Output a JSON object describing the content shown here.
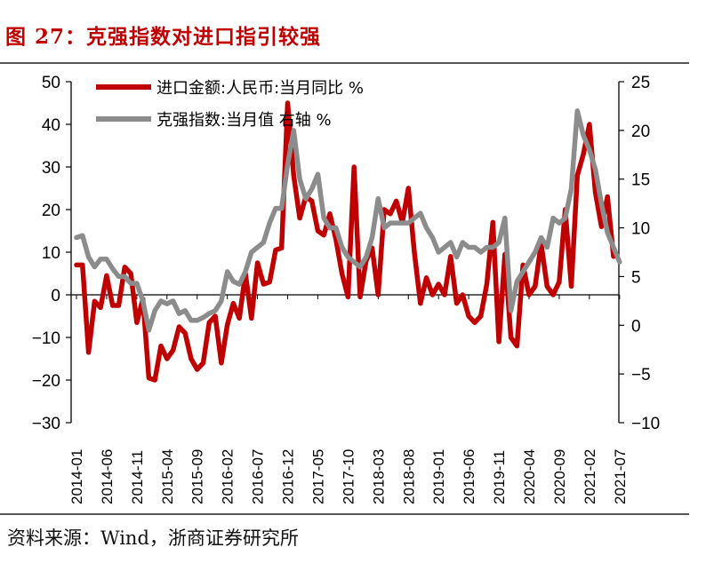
{
  "header": {
    "title": "图 27：克强指数对进口指引较强"
  },
  "footer": {
    "source": "资料来源：Wind，浙商证券研究所"
  },
  "colors": {
    "import": "#c00000",
    "keqiang": "#8c8c8c",
    "title": "#c00000"
  },
  "chart_data": {
    "type": "line",
    "legend_position": "top-left",
    "grid": false,
    "x_tick_labels": [
      "2014-01",
      "2014-06",
      "2014-11",
      "2015-04",
      "2015-09",
      "2016-02",
      "2016-07",
      "2016-12",
      "2017-05",
      "2017-10",
      "2018-03",
      "2018-08",
      "2019-01",
      "2019-06",
      "2019-11",
      "2020-04",
      "2020-09",
      "2021-02",
      "2021-07"
    ],
    "y_left": {
      "range": [
        -30,
        50
      ],
      "ticks": [
        -30,
        -20,
        -10,
        0,
        10,
        20,
        30,
        40,
        50
      ]
    },
    "y_right": {
      "range": [
        -10,
        25
      ],
      "ticks": [
        -10,
        -5,
        0,
        5,
        10,
        15,
        20,
        25
      ]
    },
    "series": [
      {
        "name": "进口金额:人民币:当月同比 %",
        "axis": "left",
        "start": "2014-01",
        "values": [
          7,
          7,
          -13.5,
          -1.5,
          -3,
          4.5,
          -2.5,
          -2.5,
          6.5,
          5,
          -6.5,
          -1,
          -19.5,
          -20,
          -12,
          -15,
          -13,
          -7.5,
          -9,
          -15,
          -17.5,
          -16,
          -6.5,
          -5,
          -16,
          -7,
          -2,
          -5.5,
          5,
          -5.5,
          7.5,
          2.5,
          3,
          10.5,
          11,
          45,
          28,
          18,
          23,
          22,
          15,
          14,
          19,
          13,
          5,
          -0.5,
          30,
          -0.5,
          8,
          11,
          0,
          20,
          19,
          22,
          17,
          25,
          10,
          -2,
          4,
          0,
          2.5,
          0,
          9,
          -2,
          0,
          -5,
          -6.5,
          -5,
          2.5,
          17,
          -11,
          9.5,
          -10,
          -12,
          7,
          0,
          2,
          12,
          2,
          0,
          3,
          20,
          2,
          28,
          33,
          40,
          24,
          16,
          23,
          9
        ]
      },
      {
        "name": "克强指数:当月值 右轴 %",
        "axis": "right",
        "start": "2014-01",
        "values": [
          9,
          9.2,
          7,
          6,
          6.8,
          6.8,
          5.8,
          5,
          5,
          4.3,
          4.3,
          2.5,
          -0.5,
          1.5,
          2.5,
          2.2,
          2.5,
          1.2,
          1.5,
          0.5,
          0.5,
          0.8,
          1.2,
          1.5,
          2.5,
          5.5,
          4.5,
          4.2,
          5.5,
          7.5,
          8,
          8.5,
          10.5,
          12,
          12,
          16.5,
          20,
          15,
          13,
          14,
          15.5,
          11,
          10,
          10,
          8,
          7,
          6.5,
          6,
          7,
          9,
          13,
          10,
          10.5,
          10.5,
          10.5,
          10.5,
          11,
          11.5,
          10,
          9,
          7.5,
          8,
          8.5,
          7,
          8.5,
          8,
          8,
          7.5,
          8,
          8,
          8.5,
          11,
          1.5,
          4.5,
          5.5,
          6.5,
          7.5,
          9,
          8,
          11,
          10.5,
          11,
          14,
          22,
          19.5,
          18,
          16,
          12.5,
          9.5,
          8,
          6.5
        ]
      }
    ]
  }
}
